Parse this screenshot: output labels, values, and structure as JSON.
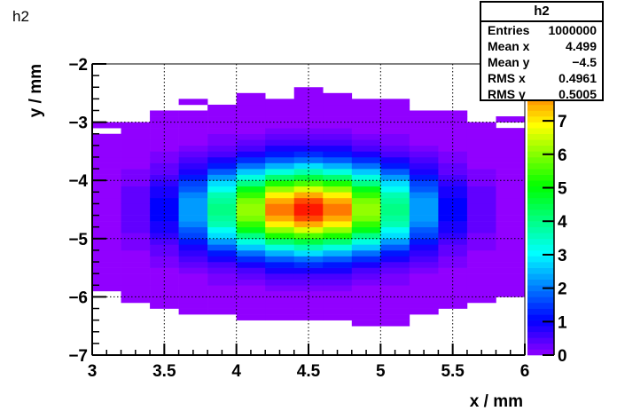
{
  "title": "h2",
  "stats": {
    "name": "h2",
    "rows": [
      {
        "label": "Entries",
        "value": "1000000"
      },
      {
        "label": "Mean x",
        "value": "4.499"
      },
      {
        "label": "Mean y",
        "value": "−4.5"
      },
      {
        "label": "RMS x",
        "value": "0.4961"
      },
      {
        "label": "RMS y",
        "value": "0.5005"
      }
    ]
  },
  "chart_data": {
    "type": "heatmap",
    "title": "h2",
    "xlabel": "x / mm",
    "ylabel": "y / mm",
    "xlim": [
      3,
      6
    ],
    "ylim": [
      -7,
      -2
    ],
    "x_bins": 15,
    "y_bins": 50,
    "x_ticks": [
      "3",
      "3.5",
      "4",
      "4.5",
      "5",
      "5.5",
      "6"
    ],
    "y_ticks": [
      "−2",
      "−3",
      "−4",
      "−5",
      "−6",
      "−7"
    ],
    "z_ticks": [
      "0",
      "1",
      "2",
      "3",
      "4",
      "5",
      "6",
      "7"
    ],
    "zlim": [
      0,
      8.7
    ],
    "distribution": {
      "mean_x": 4.5,
      "mean_y": -4.5,
      "sigma_x": 0.5,
      "sigma_y": 0.5,
      "peak": 8.6
    },
    "grid": true,
    "palette": [
      "#9100ff",
      "#0000ff",
      "#00ffff",
      "#00ff00",
      "#ffff00",
      "#ff0000"
    ]
  }
}
